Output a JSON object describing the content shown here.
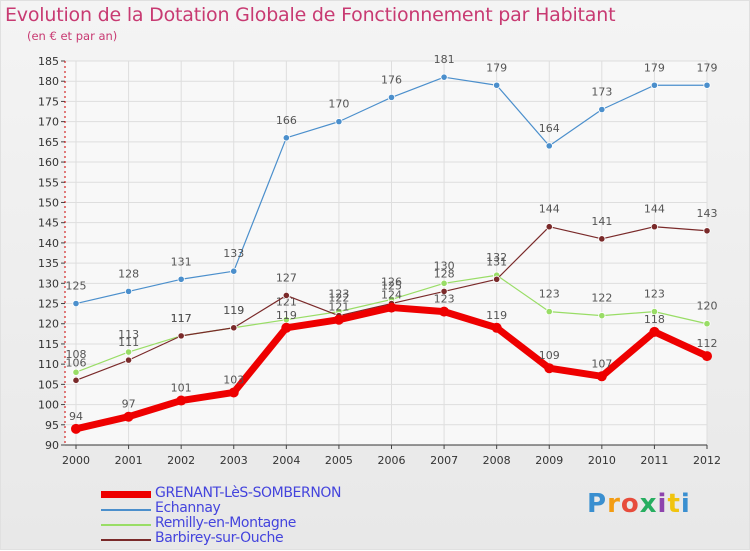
{
  "chart_data": {
    "type": "line",
    "title": "Evolution de la Dotation Globale de Fonctionnement par Habitant",
    "subtitle": "(en € et par an)",
    "xlabel": "",
    "ylabel": "",
    "x": [
      "2000",
      "2001",
      "2002",
      "2003",
      "2004",
      "2005",
      "2006",
      "2007",
      "2008",
      "2009",
      "2010",
      "2011",
      "2012"
    ],
    "ylim": [
      90,
      185
    ],
    "ytick_step": 5,
    "grid": true,
    "legend_position": "bottom-left",
    "series": [
      {
        "name": "GRENANT-LèS-SOMBERNON",
        "color": "#ee0000",
        "values": [
          94,
          97,
          101,
          103,
          119,
          121,
          124,
          123,
          119,
          109,
          107,
          118,
          112
        ]
      },
      {
        "name": "Echannay",
        "color": "#4b8fcc",
        "values": [
          125,
          128,
          131,
          133,
          166,
          170,
          176,
          181,
          179,
          164,
          173,
          179,
          179
        ]
      },
      {
        "name": "Remilly-en-Montagne",
        "color": "#99dd66",
        "values": [
          108,
          113,
          117,
          119,
          121,
          123,
          126,
          130,
          132,
          123,
          122,
          123,
          120
        ]
      },
      {
        "name": "Barbirey-sur-Ouche",
        "color": "#7a2a2a",
        "values": [
          106,
          111,
          117,
          119,
          127,
          122,
          125,
          128,
          131,
          144,
          141,
          144,
          143
        ]
      }
    ]
  },
  "legend_text_color": "#4444dd",
  "logo": {
    "text": "Proxiti",
    "letters": [
      "P",
      "r",
      "o",
      "x",
      "i",
      "t",
      "i"
    ]
  }
}
